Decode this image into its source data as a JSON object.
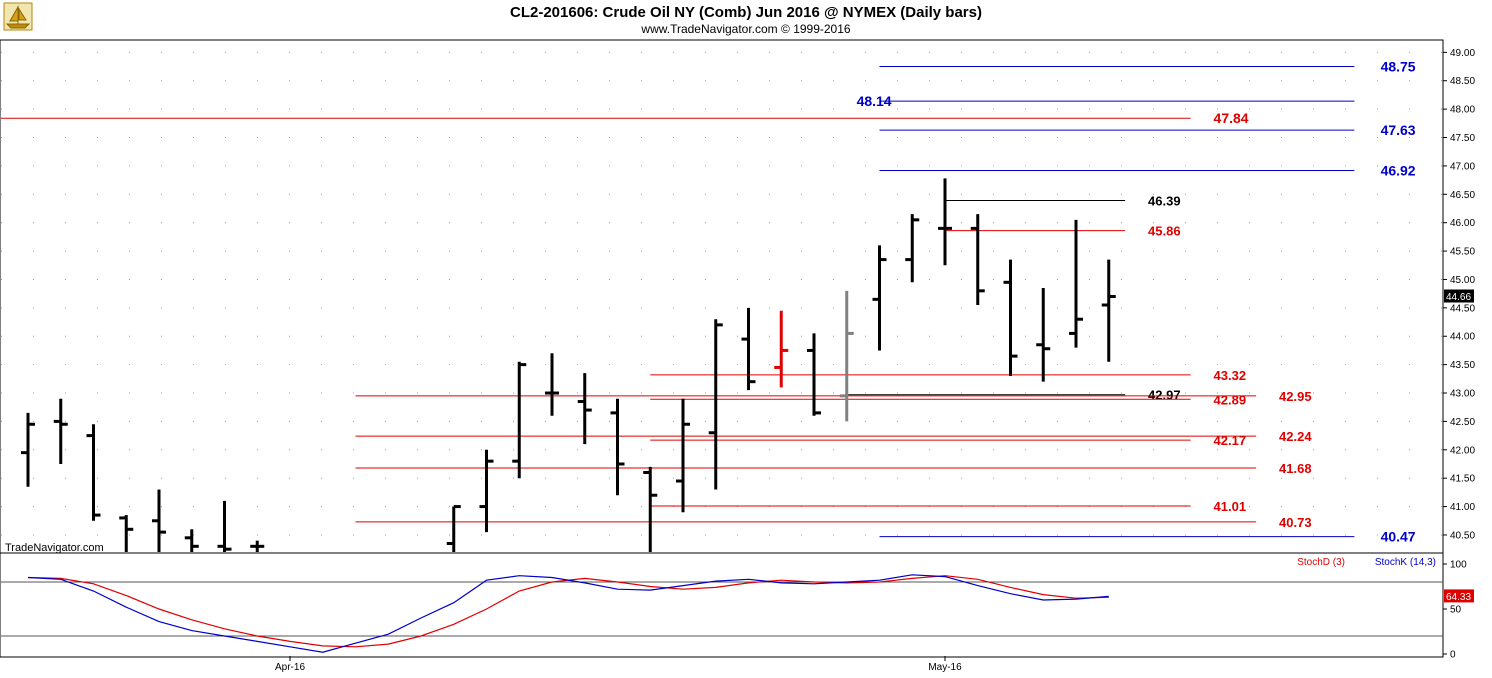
{
  "header": {
    "title": "CL2-201606:  Crude Oil NY (Comb) Jun 2016 @ NYMEX  (Daily bars)",
    "subtitle": "www.TradeNavigator.com © 1999-2016",
    "watermark": "TradeNavigator.com",
    "logo_icon": "sailboat-logo-icon"
  },
  "colors": {
    "bar": "#000000",
    "up_bar": "#e00000",
    "neutral_bar": "#808080",
    "level_red": "#e00000",
    "level_blue": "#0000c8",
    "level_black": "#000000",
    "stoch_d": "#e00000",
    "stoch_k": "#0000c8"
  },
  "chart_data": [
    {
      "type": "ohlc",
      "ylim": [
        40.2,
        49.2
      ],
      "y_ticks": [
        "40.50",
        "41.00",
        "41.50",
        "42.00",
        "42.50",
        "43.00",
        "43.50",
        "44.00",
        "44.50",
        "45.00",
        "45.50",
        "46.00",
        "46.50",
        "47.00",
        "47.50",
        "48.00",
        "48.50",
        "49.00"
      ],
      "x_ticks": [
        {
          "label": "Apr-16",
          "index": 8
        },
        {
          "label": "May-16",
          "index": 28
        }
      ],
      "last_price": "44.66",
      "bars": [
        {
          "o": 41.95,
          "h": 42.65,
          "l": 41.35,
          "c": 42.45,
          "color": "bar"
        },
        {
          "o": 42.5,
          "h": 42.9,
          "l": 41.75,
          "c": 42.45,
          "color": "bar"
        },
        {
          "o": 42.25,
          "h": 42.45,
          "l": 40.75,
          "c": 40.85,
          "color": "bar"
        },
        {
          "o": 40.8,
          "h": 40.85,
          "l": 40.2,
          "c": 40.6,
          "color": "bar"
        },
        {
          "o": 40.75,
          "h": 41.3,
          "l": 40.2,
          "c": 40.55,
          "color": "bar"
        },
        {
          "o": 40.45,
          "h": 40.6,
          "l": 40.2,
          "c": 40.3,
          "color": "bar"
        },
        {
          "o": 40.3,
          "h": 41.1,
          "l": 40.2,
          "c": 40.25,
          "color": "bar"
        },
        {
          "o": 40.3,
          "h": 40.4,
          "l": 40.2,
          "c": 40.3,
          "color": "bar"
        },
        {
          "o": 40.3,
          "h": 40.3,
          "l": 40.2,
          "c": 40.3,
          "color": "hidden"
        },
        {
          "o": 40.3,
          "h": 40.3,
          "l": 40.2,
          "c": 40.3,
          "color": "hidden"
        },
        {
          "o": 40.3,
          "h": 40.3,
          "l": 40.2,
          "c": 40.3,
          "color": "hidden"
        },
        {
          "o": 40.3,
          "h": 40.3,
          "l": 40.2,
          "c": 40.3,
          "color": "hidden"
        },
        {
          "o": 40.3,
          "h": 40.3,
          "l": 40.2,
          "c": 40.3,
          "color": "hidden"
        },
        {
          "o": 40.35,
          "h": 41.0,
          "l": 40.2,
          "c": 41.0,
          "color": "bar"
        },
        {
          "o": 41.0,
          "h": 42.0,
          "l": 40.55,
          "c": 41.8,
          "color": "bar"
        },
        {
          "o": 41.8,
          "h": 43.55,
          "l": 41.5,
          "c": 43.5,
          "color": "bar"
        },
        {
          "o": 43.0,
          "h": 43.7,
          "l": 42.6,
          "c": 43.0,
          "color": "bar"
        },
        {
          "o": 42.85,
          "h": 43.35,
          "l": 42.1,
          "c": 42.7,
          "color": "bar"
        },
        {
          "o": 42.65,
          "h": 42.9,
          "l": 41.2,
          "c": 41.75,
          "color": "bar"
        },
        {
          "o": 41.6,
          "h": 41.7,
          "l": 40.2,
          "c": 41.2,
          "color": "bar"
        },
        {
          "o": 41.45,
          "h": 42.9,
          "l": 40.9,
          "c": 42.45,
          "color": "bar"
        },
        {
          "o": 42.3,
          "h": 44.3,
          "l": 41.3,
          "c": 44.2,
          "color": "bar"
        },
        {
          "o": 43.95,
          "h": 44.5,
          "l": 43.05,
          "c": 43.2,
          "color": "bar"
        },
        {
          "o": 43.45,
          "h": 44.45,
          "l": 43.1,
          "c": 43.75,
          "color": "up_bar"
        },
        {
          "o": 43.75,
          "h": 44.05,
          "l": 42.6,
          "c": 42.65,
          "color": "bar"
        },
        {
          "o": 42.95,
          "h": 44.8,
          "l": 42.5,
          "c": 44.05,
          "color": "neutral_bar"
        },
        {
          "o": 44.65,
          "h": 45.6,
          "l": 43.75,
          "c": 45.35,
          "color": "bar"
        },
        {
          "o": 45.35,
          "h": 46.15,
          "l": 44.95,
          "c": 46.05,
          "color": "bar"
        },
        {
          "o": 45.9,
          "h": 46.78,
          "l": 45.25,
          "c": 45.9,
          "color": "bar"
        },
        {
          "o": 45.9,
          "h": 46.15,
          "l": 44.55,
          "c": 44.8,
          "color": "bar"
        },
        {
          "o": 44.95,
          "h": 45.35,
          "l": 43.3,
          "c": 43.65,
          "color": "bar"
        },
        {
          "o": 43.85,
          "h": 44.85,
          "l": 43.2,
          "c": 43.78,
          "color": "bar"
        },
        {
          "o": 44.05,
          "h": 46.05,
          "l": 43.8,
          "c": 44.3,
          "color": "bar"
        },
        {
          "o": 44.55,
          "h": 45.35,
          "l": 43.55,
          "c": 44.7,
          "color": "bar"
        }
      ],
      "levels": [
        {
          "value": 48.75,
          "label": "48.75",
          "color": "level_blue",
          "x0": 26.0,
          "x1": 40.5,
          "label_at": 41.3,
          "bold": true
        },
        {
          "value": 48.14,
          "label": "48.14",
          "color": "level_blue",
          "x0": 26.0,
          "x1": 40.5,
          "label_at": 25.3,
          "bold": true
        },
        {
          "value": 47.84,
          "label": "47.84",
          "color": "level_red",
          "x0": -1.0,
          "x1": 35.5,
          "label_at": 36.2,
          "bold": true
        },
        {
          "value": 47.63,
          "label": "47.63",
          "color": "level_blue",
          "x0": 26.0,
          "x1": 40.5,
          "label_at": 41.3,
          "bold": true
        },
        {
          "value": 46.92,
          "label": "46.92",
          "color": "level_blue",
          "x0": 26.0,
          "x1": 40.5,
          "label_at": 41.3,
          "bold": true
        },
        {
          "value": 46.39,
          "label": "46.39",
          "color": "level_black",
          "x0": 28.0,
          "x1": 33.5,
          "label_at": 34.2,
          "bold": false
        },
        {
          "value": 45.86,
          "label": "45.86",
          "color": "level_red",
          "x0": 28.0,
          "x1": 33.5,
          "label_at": 34.2,
          "bold": false
        },
        {
          "value": 43.32,
          "label": "43.32",
          "color": "level_red",
          "x0": 19.0,
          "x1": 35.5,
          "label_at": 36.2,
          "bold": false
        },
        {
          "value": 42.97,
          "label": "42.97",
          "color": "level_black",
          "x0": 25.0,
          "x1": 33.5,
          "label_at": 34.2,
          "bold": false
        },
        {
          "value": 42.95,
          "label": "42.95",
          "color": "level_red",
          "x0": 10.0,
          "x1": 37.5,
          "label_at": 38.2,
          "bold": false
        },
        {
          "value": 42.89,
          "label": "42.89",
          "color": "level_red",
          "x0": 19.0,
          "x1": 35.5,
          "label_at": 36.2,
          "bold": false
        },
        {
          "value": 42.24,
          "label": "42.24",
          "color": "level_red",
          "x0": 10.0,
          "x1": 37.5,
          "label_at": 38.2,
          "bold": false
        },
        {
          "value": 42.17,
          "label": "42.17",
          "color": "level_red",
          "x0": 19.0,
          "x1": 35.5,
          "label_at": 36.2,
          "bold": false
        },
        {
          "value": 41.68,
          "label": "41.68",
          "color": "level_red",
          "x0": 10.0,
          "x1": 37.5,
          "label_at": 38.2,
          "bold": false
        },
        {
          "value": 41.01,
          "label": "41.01",
          "color": "level_red",
          "x0": 19.0,
          "x1": 35.5,
          "label_at": 36.2,
          "bold": false
        },
        {
          "value": 40.73,
          "label": "40.73",
          "color": "level_red",
          "x0": 10.0,
          "x1": 37.5,
          "label_at": 38.2,
          "bold": false
        },
        {
          "value": 40.47,
          "label": "40.47",
          "color": "level_blue",
          "x0": 26.0,
          "x1": 40.5,
          "label_at": 41.3,
          "bold": true
        }
      ]
    },
    {
      "type": "line",
      "ylim": [
        0,
        100
      ],
      "y_ticks": [
        "0",
        "50",
        "100"
      ],
      "guide_lines": [
        80,
        20
      ],
      "last_value": "64.33",
      "legend": [
        "StochD (3)",
        "StochK (14,3)"
      ],
      "series": [
        {
          "name": "StochD (3)",
          "color": "stoch_d",
          "values": [
            85,
            84,
            78,
            65,
            50,
            38,
            28,
            20,
            14,
            9,
            8,
            11,
            20,
            33,
            50,
            70,
            80,
            84,
            80,
            75,
            72,
            74,
            79,
            82,
            80,
            79,
            80,
            84,
            87,
            83,
            74,
            66,
            62,
            63
          ]
        },
        {
          "name": "StochK (14,3)",
          "color": "stoch_k",
          "values": [
            85,
            83,
            70,
            52,
            36,
            26,
            20,
            14,
            8,
            2,
            12,
            22,
            40,
            57,
            82,
            87,
            85,
            79,
            72,
            71,
            76,
            81,
            83,
            79,
            78,
            80,
            82,
            88,
            86,
            76,
            67,
            60,
            61,
            64
          ]
        }
      ]
    }
  ]
}
